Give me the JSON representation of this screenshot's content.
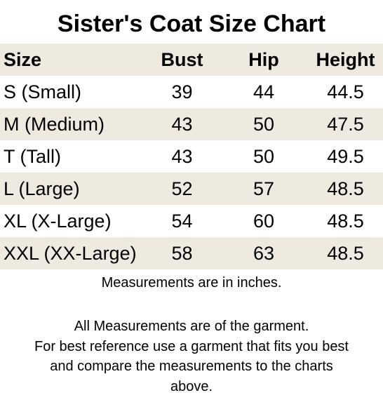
{
  "title": "Sister's Coat Size Chart",
  "table": {
    "headers": [
      "Size",
      "Bust",
      "Hip",
      "Height"
    ],
    "rows": [
      [
        "S (Small)",
        "39",
        "44",
        "44.5"
      ],
      [
        "M (Medium)",
        "43",
        "50",
        "47.5"
      ],
      [
        "T (Tall)",
        "43",
        "50",
        "49.5"
      ],
      [
        "L (Large)",
        "52",
        "57",
        "48.5"
      ],
      [
        "XL (X-Large)",
        "54",
        "60",
        "48.5"
      ],
      [
        "XXL (XX-Large)",
        "58",
        "63",
        "48.5"
      ]
    ],
    "shade_color": "#eeeae0"
  },
  "note": "Measurements are in inches.",
  "paragraph_lines": [
    "All Measurements are of the garment.",
    "For best reference use a garment that fits you best",
    "and compare the measurements to the charts",
    "above."
  ]
}
